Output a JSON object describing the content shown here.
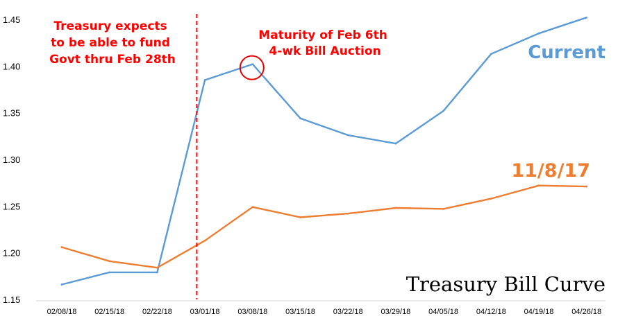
{
  "chart_data": {
    "type": "line",
    "title": "Treasury Bill Curve",
    "x": [
      "02/08/18",
      "02/15/18",
      "02/22/18",
      "03/01/18",
      "03/08/18",
      "03/15/18",
      "03/22/18",
      "03/29/18",
      "04/05/18",
      "04/12/18",
      "04/19/18",
      "04/26/18"
    ],
    "ylim": [
      1.15,
      1.45
    ],
    "yticks": [
      "1.15",
      "1.20",
      "1.25",
      "1.30",
      "1.35",
      "1.40",
      "1.45"
    ],
    "grid": false,
    "series": [
      {
        "name": "Current",
        "color": "#5b9bd5",
        "values": [
          1.166,
          1.179,
          1.179,
          1.385,
          1.402,
          1.344,
          1.326,
          1.317,
          1.352,
          1.413,
          1.435,
          1.452
        ]
      },
      {
        "name": "11/8/17",
        "color": "#ed7d31",
        "values": [
          1.206,
          1.191,
          1.184,
          1.213,
          1.249,
          1.238,
          1.242,
          1.248,
          1.247,
          1.258,
          1.272,
          1.271
        ]
      }
    ],
    "annotations": {
      "vline": {
        "between": [
          "02/22/18",
          "03/01/18"
        ],
        "color": "#ff0000",
        "lines": [
          "Treasury expects",
          "to be able to fund",
          "Govt thru Feb 28th"
        ]
      },
      "circle": {
        "at": "03/08/18",
        "color": "#e60000",
        "lines": [
          "Maturity of Feb 6th",
          "4-wk Bill Auction"
        ]
      }
    }
  }
}
